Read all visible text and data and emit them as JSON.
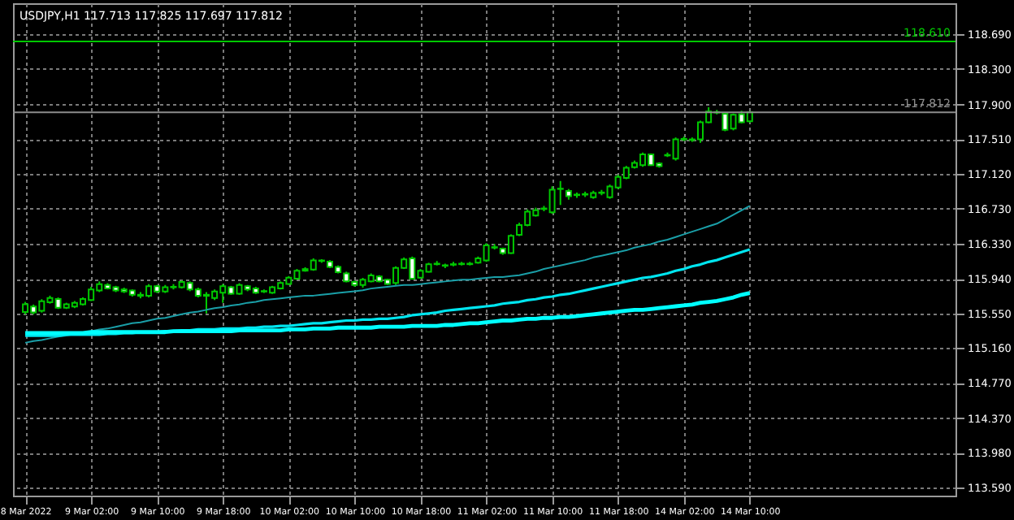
{
  "chart_data": {
    "type": "candlestick",
    "title": "USDJPY,H1 117.713 117.825 117.697 117.812",
    "color": "#00c800",
    "categories": [
      "8 Mar 2022",
      null,
      null,
      null,
      null,
      null,
      null,
      null,
      "9 Mar 02:00",
      null,
      null,
      null,
      null,
      null,
      null,
      null,
      "9 Mar 10:00",
      null,
      null,
      null,
      null,
      null,
      null,
      null,
      "9 Mar 18:00",
      null,
      null,
      null,
      null,
      null,
      null,
      null,
      "10 Mar 02:00",
      null,
      null,
      null,
      null,
      null,
      null,
      null,
      "10 Mar 10:00",
      null,
      null,
      null,
      null,
      null,
      null,
      null,
      "10 Mar 18:00",
      null,
      null,
      null,
      null,
      null,
      null,
      null,
      "11 Mar 02:00",
      null,
      null,
      null,
      null,
      null,
      null,
      null,
      "11 Mar 10:00",
      null,
      null,
      null,
      null,
      null,
      null,
      null,
      "11 Mar 18:00",
      null,
      null,
      null,
      null,
      null,
      null,
      null,
      "14 Mar 02:00",
      null,
      null,
      null,
      null,
      null,
      null,
      null,
      "14 Mar 10:00"
    ],
    "ohlc": [
      [
        115.567,
        115.68,
        115.54,
        115.652
      ],
      [
        115.627,
        115.65,
        115.54,
        115.561
      ],
      [
        115.579,
        115.71,
        115.56,
        115.688
      ],
      [
        115.676,
        115.75,
        115.66,
        115.724
      ],
      [
        115.712,
        115.73,
        115.6,
        115.615
      ],
      [
        115.615,
        115.67,
        115.6,
        115.652
      ],
      [
        115.627,
        115.69,
        115.61,
        115.67
      ],
      [
        115.652,
        115.73,
        115.64,
        115.712
      ],
      [
        115.7,
        115.85,
        115.69,
        115.82
      ],
      [
        115.808,
        115.91,
        115.79,
        115.88
      ],
      [
        115.869,
        115.89,
        115.82,
        115.832
      ],
      [
        115.844,
        115.86,
        115.79,
        115.808
      ],
      [
        115.82,
        115.84,
        115.78,
        115.796
      ],
      [
        115.808,
        115.82,
        115.74,
        115.76
      ],
      [
        115.76,
        115.79,
        115.72,
        115.748
      ],
      [
        115.748,
        115.88,
        115.73,
        115.857
      ],
      [
        115.857,
        115.87,
        115.78,
        115.796
      ],
      [
        115.796,
        115.87,
        115.78,
        115.844
      ],
      [
        115.844,
        115.88,
        115.82,
        115.85
      ],
      [
        115.844,
        115.92,
        115.83,
        115.905
      ],
      [
        115.893,
        115.91,
        115.8,
        115.82
      ],
      [
        115.82,
        115.84,
        115.73,
        115.748
      ],
      [
        115.748,
        115.79,
        115.55,
        115.76
      ],
      [
        115.724,
        115.82,
        115.7,
        115.796
      ],
      [
        115.784,
        115.88,
        115.67,
        115.857
      ],
      [
        115.844,
        115.86,
        115.76,
        115.772
      ],
      [
        115.772,
        115.89,
        115.76,
        115.869
      ],
      [
        115.857,
        115.87,
        115.8,
        115.82
      ],
      [
        115.832,
        115.85,
        115.77,
        115.784
      ],
      [
        115.796,
        115.82,
        115.78,
        115.802
      ],
      [
        115.784,
        115.86,
        115.77,
        115.844
      ],
      [
        115.832,
        115.91,
        115.82,
        115.893
      ],
      [
        115.881,
        115.97,
        115.87,
        115.953
      ],
      [
        115.941,
        116.05,
        115.93,
        116.031
      ],
      [
        116.031,
        116.07,
        116.02,
        116.049
      ],
      [
        116.043,
        116.17,
        116.03,
        116.146
      ],
      [
        116.146,
        116.16,
        116.12,
        116.14
      ],
      [
        116.134,
        116.15,
        116.06,
        116.074
      ],
      [
        116.074,
        116.09,
        116.0,
        116.013
      ],
      [
        116.001,
        116.02,
        115.9,
        115.911
      ],
      [
        115.905,
        115.92,
        115.85,
        115.869
      ],
      [
        115.869,
        115.95,
        115.84,
        115.929
      ],
      [
        115.911,
        116.0,
        115.9,
        115.977
      ],
      [
        115.965,
        115.98,
        115.9,
        115.911
      ],
      [
        115.929,
        115.94,
        115.87,
        115.881
      ],
      [
        115.893,
        116.08,
        115.87,
        116.061
      ],
      [
        116.061,
        116.18,
        116.05,
        116.158
      ],
      [
        116.17,
        116.19,
        115.93,
        115.941
      ],
      [
        115.953,
        116.05,
        115.94,
        116.031
      ],
      [
        116.019,
        116.12,
        116.01,
        116.104
      ],
      [
        116.104,
        116.14,
        116.09,
        116.11
      ],
      [
        116.086,
        116.11,
        116.06,
        116.092
      ],
      [
        116.098,
        116.13,
        116.08,
        116.104
      ],
      [
        116.11,
        116.13,
        116.09,
        116.104
      ],
      [
        116.104,
        116.13,
        116.09,
        116.11
      ],
      [
        116.122,
        116.19,
        116.11,
        116.17
      ],
      [
        116.146,
        116.34,
        116.13,
        116.315
      ],
      [
        116.29,
        116.33,
        116.27,
        116.296
      ],
      [
        116.278,
        116.29,
        116.21,
        116.23
      ],
      [
        116.23,
        116.44,
        116.22,
        116.423
      ],
      [
        116.435,
        116.57,
        116.42,
        116.544
      ],
      [
        116.544,
        116.72,
        116.53,
        116.694
      ],
      [
        116.652,
        116.74,
        116.64,
        116.712
      ],
      [
        116.725,
        116.76,
        116.7,
        116.731
      ],
      [
        116.688,
        116.98,
        116.67,
        116.941
      ],
      [
        116.95,
        117.04,
        116.77,
        116.954
      ],
      [
        116.929,
        116.95,
        116.83,
        116.869
      ],
      [
        116.881,
        116.91,
        116.85,
        116.887
      ],
      [
        116.887,
        116.92,
        116.86,
        116.893
      ],
      [
        116.857,
        116.93,
        116.84,
        116.905
      ],
      [
        116.905,
        116.94,
        116.88,
        116.911
      ],
      [
        116.857,
        117.0,
        116.84,
        116.978
      ],
      [
        116.966,
        117.11,
        116.95,
        117.086
      ],
      [
        117.074,
        117.21,
        117.06,
        117.189
      ],
      [
        117.195,
        117.27,
        117.18,
        117.243
      ],
      [
        117.219,
        117.36,
        117.2,
        117.339
      ],
      [
        117.339,
        117.35,
        117.21,
        117.219
      ],
      [
        117.237,
        117.25,
        117.19,
        117.207
      ],
      [
        117.327,
        117.36,
        117.31,
        117.333
      ],
      [
        117.291,
        117.53,
        117.27,
        117.508
      ],
      [
        117.508,
        117.54,
        117.49,
        117.514
      ],
      [
        117.508,
        117.53,
        117.48,
        117.502
      ],
      [
        117.508,
        117.72,
        117.47,
        117.701
      ],
      [
        117.701,
        117.87,
        117.69,
        117.822
      ],
      [
        117.81,
        117.84,
        117.79,
        117.816
      ],
      [
        117.797,
        117.81,
        117.6,
        117.617
      ],
      [
        117.629,
        117.8,
        117.61,
        117.785
      ],
      [
        117.791,
        117.83,
        117.69,
        117.701
      ],
      [
        117.713,
        117.825,
        117.697,
        117.812
      ]
    ],
    "series": [
      {
        "type": "line",
        "color": "#1a9fa8",
        "values": [
          115.22,
          115.24,
          115.25,
          115.27,
          115.29,
          115.3,
          115.32,
          115.33,
          115.35,
          115.37,
          115.38,
          115.4,
          115.42,
          115.44,
          115.45,
          115.47,
          115.49,
          115.5,
          115.52,
          115.54,
          115.56,
          115.57,
          115.59,
          115.61,
          115.62,
          115.64,
          115.65,
          115.67,
          115.68,
          115.7,
          115.71,
          115.72,
          115.73,
          115.74,
          115.75,
          115.75,
          115.76,
          115.77,
          115.78,
          115.79,
          115.8,
          115.81,
          115.83,
          115.84,
          115.85,
          115.86,
          115.87,
          115.87,
          115.88,
          115.89,
          115.9,
          115.91,
          115.92,
          115.93,
          115.93,
          115.94,
          115.95,
          115.96,
          115.96,
          115.97,
          115.98,
          116.0,
          116.02,
          116.05,
          116.07,
          116.09,
          116.11,
          116.13,
          116.15,
          116.18,
          116.2,
          116.22,
          116.24,
          116.26,
          116.29,
          116.31,
          116.33,
          116.36,
          116.38,
          116.41,
          116.44,
          116.47,
          116.5,
          116.53,
          116.56,
          116.61,
          116.66,
          116.71,
          116.76
        ]
      },
      {
        "type": "line",
        "color": "#00e5ef",
        "values": [
          115.3,
          115.3,
          115.3,
          115.3,
          115.3,
          115.31,
          115.31,
          115.31,
          115.31,
          115.31,
          115.32,
          115.32,
          115.33,
          115.33,
          115.34,
          115.34,
          115.34,
          115.35,
          115.35,
          115.36,
          115.36,
          115.37,
          115.37,
          115.37,
          115.38,
          115.38,
          115.38,
          115.39,
          115.39,
          115.4,
          115.4,
          115.41,
          115.41,
          115.42,
          115.43,
          115.44,
          115.44,
          115.45,
          115.46,
          115.47,
          115.47,
          115.48,
          115.48,
          115.49,
          115.49,
          115.5,
          115.51,
          115.53,
          115.54,
          115.55,
          115.56,
          115.58,
          115.59,
          115.6,
          115.61,
          115.62,
          115.63,
          115.64,
          115.66,
          115.67,
          115.68,
          115.7,
          115.71,
          115.73,
          115.74,
          115.76,
          115.77,
          115.79,
          115.81,
          115.83,
          115.85,
          115.87,
          115.89,
          115.91,
          115.93,
          115.95,
          115.96,
          115.98,
          116.0,
          116.03,
          116.05,
          116.08,
          116.1,
          116.13,
          116.15,
          116.18,
          116.21,
          116.24,
          116.27
        ]
      },
      {
        "type": "line",
        "color": "#00ffff",
        "values": [
          115.33,
          115.33,
          115.33,
          115.33,
          115.33,
          115.33,
          115.33,
          115.33,
          115.34,
          115.34,
          115.34,
          115.34,
          115.34,
          115.34,
          115.34,
          115.34,
          115.34,
          115.34,
          115.35,
          115.35,
          115.35,
          115.35,
          115.35,
          115.35,
          115.35,
          115.35,
          115.36,
          115.36,
          115.36,
          115.36,
          115.36,
          115.36,
          115.37,
          115.37,
          115.37,
          115.38,
          115.38,
          115.38,
          115.39,
          115.39,
          115.39,
          115.39,
          115.39,
          115.4,
          115.4,
          115.4,
          115.4,
          115.41,
          115.41,
          115.41,
          115.41,
          115.42,
          115.42,
          115.43,
          115.44,
          115.44,
          115.45,
          115.46,
          115.47,
          115.47,
          115.48,
          115.49,
          115.49,
          115.5,
          115.5,
          115.51,
          115.51,
          115.52,
          115.53,
          115.54,
          115.55,
          115.56,
          115.57,
          115.58,
          115.59,
          115.59,
          115.6,
          115.61,
          115.62,
          115.63,
          115.64,
          115.65,
          115.67,
          115.68,
          115.69,
          115.71,
          115.73,
          115.76,
          115.78
        ]
      }
    ],
    "ref_lines": [
      {
        "axis": "y",
        "value": 118.61,
        "label": "118.610",
        "color": "#00c800"
      },
      {
        "axis": "y",
        "value": 117.812,
        "label": "117.812",
        "color": "#8c8c8c"
      }
    ],
    "ylim": [
      113.5,
      119.04
    ],
    "yticks": [
      {
        "value": 113.59,
        "label": "113.590"
      },
      {
        "value": 113.98,
        "label": "113.980"
      },
      {
        "value": 114.37,
        "label": "114.370"
      },
      {
        "value": 114.77,
        "label": "114.770"
      },
      {
        "value": 115.16,
        "label": "115.160"
      },
      {
        "value": 115.55,
        "label": "115.550"
      },
      {
        "value": 115.94,
        "label": "115.940"
      },
      {
        "value": 116.33,
        "label": "116.330"
      },
      {
        "value": 116.73,
        "label": "116.730"
      },
      {
        "value": 117.12,
        "label": "117.120"
      },
      {
        "value": 117.51,
        "label": "117.510"
      },
      {
        "value": 117.9,
        "label": "117.900"
      },
      {
        "value": 118.3,
        "label": "118.300"
      },
      {
        "value": 118.69,
        "label": "118.690"
      }
    ],
    "grid": true
  }
}
